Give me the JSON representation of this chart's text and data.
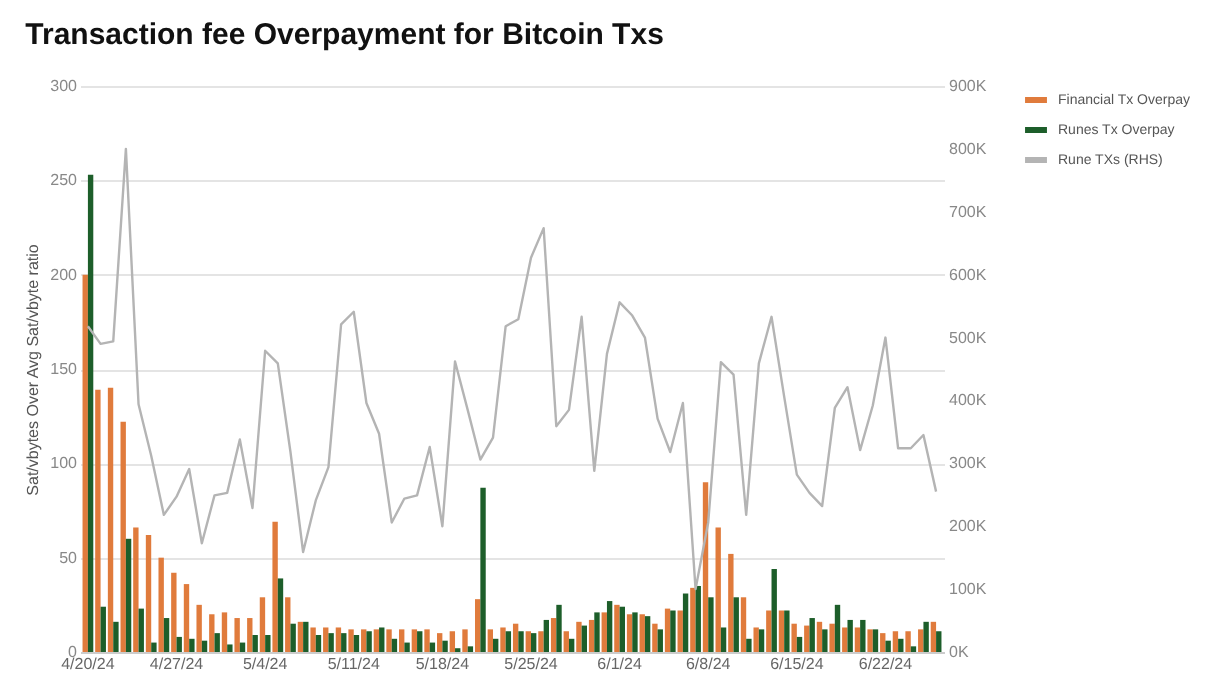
{
  "chart_data": {
    "type": "bar",
    "title": "Transaction fee Overpayment for Bitcoin Txs",
    "ylabel": "Sat/vbytes Over Avg Sat/vbyte ratio",
    "categories": [
      "4/20/24",
      null,
      null,
      null,
      null,
      null,
      null,
      "4/27/24",
      null,
      null,
      null,
      null,
      null,
      null,
      "5/4/24",
      null,
      null,
      null,
      null,
      null,
      null,
      "5/11/24",
      null,
      null,
      null,
      null,
      null,
      null,
      "5/18/24",
      null,
      null,
      null,
      null,
      null,
      null,
      "5/25/24",
      null,
      null,
      null,
      null,
      null,
      null,
      "6/1/24",
      null,
      null,
      null,
      null,
      null,
      null,
      "6/8/24",
      null,
      null,
      null,
      null,
      null,
      null,
      "6/15/24",
      null,
      null,
      null,
      null,
      null,
      null,
      "6/22/24",
      null,
      null,
      null,
      null
    ],
    "series": [
      {
        "name": "Financial Tx Overpay",
        "color": "#e07b3c",
        "values": [
          200,
          139,
          140,
          122,
          66,
          62,
          50,
          42,
          36,
          25,
          20,
          21,
          18,
          18,
          29,
          69,
          29,
          16,
          13,
          13,
          13,
          12,
          12,
          12,
          12,
          12,
          12,
          12,
          10,
          11,
          12,
          28,
          12,
          13,
          15,
          11,
          11,
          18,
          11,
          16,
          17,
          21,
          25,
          20,
          20,
          15,
          23,
          22,
          34,
          90,
          66,
          52,
          29,
          13,
          22,
          22,
          15,
          14,
          16,
          15,
          13,
          13,
          12,
          10,
          11,
          11,
          12,
          16
        ]
      },
      {
        "name": "Runes Tx Overpay",
        "color": "#1d5e2a",
        "values": [
          253,
          24,
          16,
          60,
          23,
          5,
          18,
          8,
          7,
          6,
          10,
          4,
          5,
          9,
          9,
          39,
          15,
          16,
          9,
          10,
          10,
          9,
          11,
          13,
          7,
          5,
          11,
          5,
          6,
          2,
          3,
          87,
          7,
          11,
          11,
          10,
          17,
          25,
          7,
          14,
          21,
          27,
          24,
          21,
          19,
          12,
          22,
          31,
          35,
          29,
          13,
          29,
          7,
          12,
          44,
          22,
          8,
          18,
          12,
          25,
          17,
          17,
          12,
          6,
          7,
          3,
          16,
          11
        ]
      },
      {
        "name": "Rune TXs (RHS)",
        "color": "#b4b4b4",
        "type": "line",
        "axis": "y2",
        "values": [
          518000,
          490000,
          494000,
          800000,
          394000,
          312000,
          218000,
          247000,
          291000,
          173000,
          249000,
          253000,
          338000,
          229000,
          479000,
          459000,
          318000,
          159000,
          241000,
          294000,
          521000,
          541000,
          396000,
          347000,
          206000,
          244000,
          249000,
          326000,
          200000,
          462000,
          385000,
          306000,
          341000,
          518000,
          529000,
          627000,
          674000,
          359000,
          385000,
          533000,
          288000,
          474000,
          556000,
          535000,
          500000,
          371000,
          318000,
          396000,
          100000,
          206000,
          461000,
          441000,
          218000,
          459000,
          533000,
          406000,
          282000,
          253000,
          232000,
          388000,
          421000,
          321000,
          392000,
          500000,
          324000,
          324000,
          345000,
          255000
        ]
      }
    ],
    "ylim": [
      0,
      300
    ],
    "yticks": [
      0,
      50,
      100,
      150,
      200,
      250,
      300
    ],
    "y2lim": [
      0,
      900000
    ],
    "y2ticks": [
      {
        "value": 0,
        "label": "0K"
      },
      {
        "value": 100000,
        "label": "100K"
      },
      {
        "value": 200000,
        "label": "200K"
      },
      {
        "value": 300000,
        "label": "300K"
      },
      {
        "value": 400000,
        "label": "400K"
      },
      {
        "value": 500000,
        "label": "500K"
      },
      {
        "value": 600000,
        "label": "600K"
      },
      {
        "value": 700000,
        "label": "700K"
      },
      {
        "value": 800000,
        "label": "800K"
      },
      {
        "value": 900000,
        "label": "900K"
      }
    ],
    "grid": "y",
    "legend": "right"
  }
}
